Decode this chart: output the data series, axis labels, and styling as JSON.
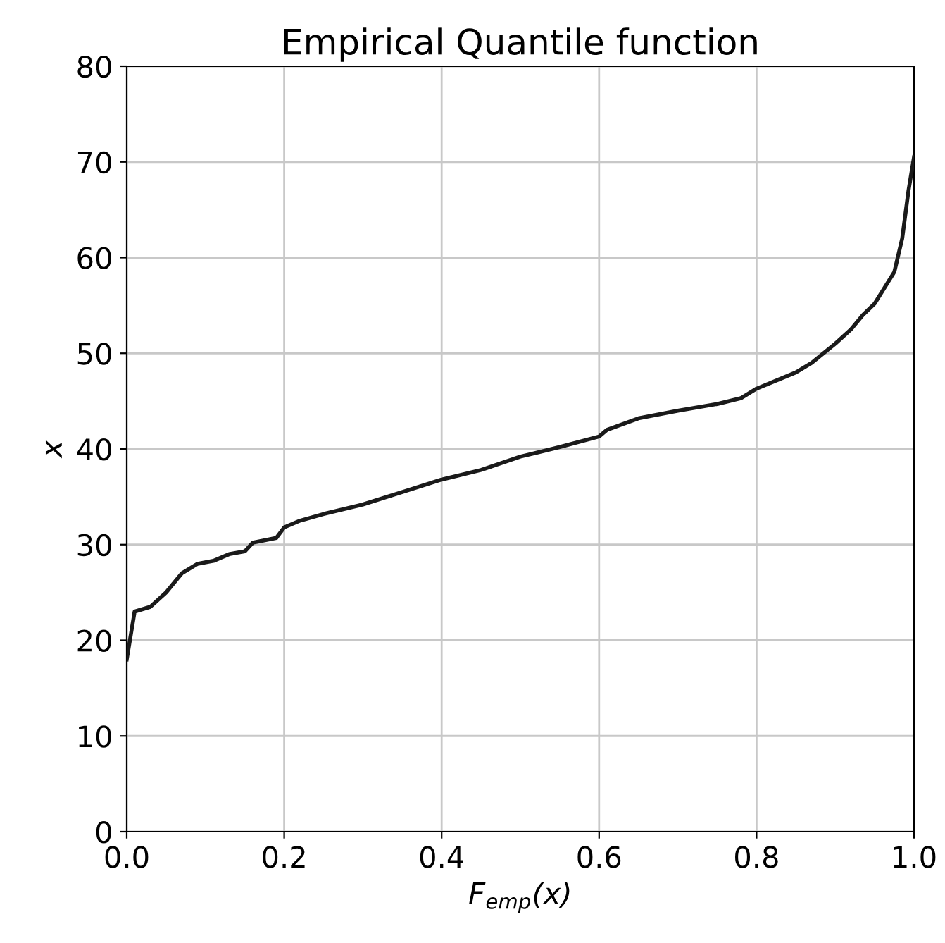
{
  "chart_data": {
    "type": "line",
    "title": "Empirical Quantile function",
    "xlabel": "F$_{emp}$(x)",
    "ylabel": "x",
    "series": [
      {
        "color": "#1a1a1a",
        "x": [
          0,
          0.01,
          0.03,
          0.05,
          0.07,
          0.09,
          0.11,
          0.13,
          0.15,
          0.16,
          0.19,
          0.2,
          0.22,
          0.25,
          0.3,
          0.35,
          0.4,
          0.45,
          0.5,
          0.55,
          0.6,
          0.61,
          0.65,
          0.7,
          0.75,
          0.78,
          0.8,
          0.85,
          0.87,
          0.9,
          0.92,
          0.935,
          0.95,
          0.975,
          0.985,
          0.993,
          1.0
        ],
        "values": [
          18,
          23,
          23.5,
          25,
          27,
          28,
          28.3,
          29,
          29.3,
          30.2,
          30.7,
          31.8,
          32.5,
          33.2,
          34.2,
          35.5,
          36.8,
          37.8,
          39.2,
          40.2,
          41.3,
          42,
          43.2,
          44,
          44.7,
          45.3,
          46.3,
          48,
          49,
          51,
          52.5,
          54,
          55.2,
          58.5,
          62,
          67,
          70.5
        ]
      }
    ],
    "xlim": [
      0,
      1
    ],
    "ylim": [
      0,
      80
    ],
    "xticks": [
      {
        "value": 0,
        "label": "0.0"
      },
      0.2,
      0.4,
      0.6,
      0.8,
      {
        "value": 1,
        "label": "1.0"
      }
    ],
    "yticks": [
      0,
      10,
      20,
      30,
      40,
      50,
      60,
      70,
      80
    ],
    "grid": true,
    "line_style": "solid",
    "marker": "none"
  }
}
